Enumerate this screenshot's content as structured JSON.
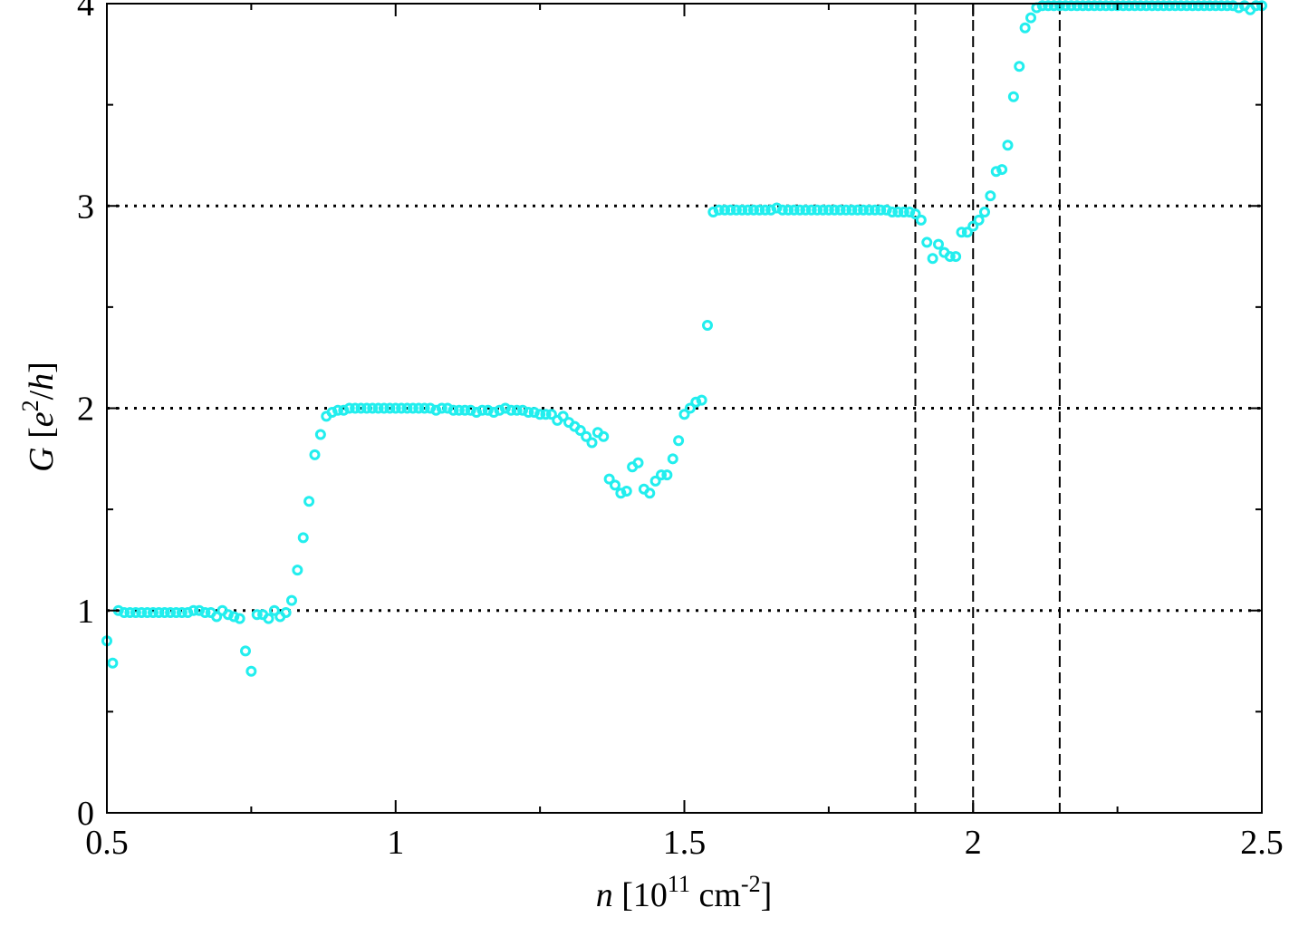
{
  "chart_data": {
    "type": "scatter",
    "xlabel_parts": [
      "n",
      " [10",
      "11",
      " cm",
      "-2",
      "]"
    ],
    "ylabel_parts": [
      "G",
      " [",
      "e",
      "2",
      "/",
      "h",
      "]"
    ],
    "xlim": [
      0.5,
      2.5
    ],
    "ylim": [
      0,
      4
    ],
    "xticks": [
      0.5,
      1,
      1.5,
      2,
      2.5
    ],
    "yticks": [
      0,
      1,
      2,
      3,
      4
    ],
    "xminorticks": [
      0.75,
      1.25,
      1.75,
      2.25
    ],
    "yminorticks": [
      0.5,
      1.5,
      2.5,
      3.5
    ],
    "grid": true,
    "vlines": [
      1.9,
      2.0,
      2.15
    ],
    "color": "#22eeee",
    "x": [
      0.5,
      0.51,
      0.52,
      0.53,
      0.54,
      0.55,
      0.56,
      0.57,
      0.58,
      0.59,
      0.6,
      0.61,
      0.62,
      0.63,
      0.64,
      0.65,
      0.66,
      0.67,
      0.68,
      0.69,
      0.7,
      0.71,
      0.72,
      0.73,
      0.74,
      0.75,
      0.76,
      0.77,
      0.78,
      0.79,
      0.8,
      0.81,
      0.82,
      0.83,
      0.84,
      0.85,
      0.86,
      0.87,
      0.88,
      0.89,
      0.9,
      0.91,
      0.92,
      0.93,
      0.94,
      0.95,
      0.96,
      0.97,
      0.98,
      0.99,
      1.0,
      1.01,
      1.02,
      1.03,
      1.04,
      1.05,
      1.06,
      1.07,
      1.08,
      1.09,
      1.1,
      1.11,
      1.12,
      1.13,
      1.14,
      1.15,
      1.16,
      1.17,
      1.18,
      1.19,
      1.2,
      1.21,
      1.22,
      1.23,
      1.24,
      1.25,
      1.26,
      1.27,
      1.28,
      1.29,
      1.3,
      1.31,
      1.32,
      1.33,
      1.34,
      1.35,
      1.36,
      1.37,
      1.38,
      1.39,
      1.4,
      1.41,
      1.42,
      1.43,
      1.44,
      1.45,
      1.46,
      1.47,
      1.48,
      1.49,
      1.5,
      1.51,
      1.52,
      1.53,
      1.54,
      1.55,
      1.56,
      1.57,
      1.58,
      1.59,
      1.6,
      1.61,
      1.62,
      1.63,
      1.64,
      1.65,
      1.66,
      1.67,
      1.68,
      1.69,
      1.7,
      1.71,
      1.72,
      1.73,
      1.74,
      1.75,
      1.76,
      1.77,
      1.78,
      1.79,
      1.8,
      1.81,
      1.82,
      1.83,
      1.84,
      1.85,
      1.86,
      1.87,
      1.88,
      1.89,
      1.9,
      1.91,
      1.92,
      1.93,
      1.94,
      1.95,
      1.96,
      1.97,
      1.98,
      1.99,
      2.0,
      2.01,
      2.02,
      2.03,
      2.04,
      2.05,
      2.06,
      2.07,
      2.08,
      2.09,
      2.1,
      2.11,
      2.12,
      2.13,
      2.14,
      2.15,
      2.16,
      2.17,
      2.18,
      2.19,
      2.2,
      2.21,
      2.22,
      2.23,
      2.24,
      2.25,
      2.26,
      2.27,
      2.28,
      2.29,
      2.3,
      2.31,
      2.32,
      2.33,
      2.34,
      2.35,
      2.36,
      2.37,
      2.38,
      2.39,
      2.4,
      2.41,
      2.42,
      2.43,
      2.44,
      2.45,
      2.46,
      2.47,
      2.48,
      2.49,
      2.5
    ],
    "values": [
      0.85,
      0.74,
      1.0,
      0.99,
      0.99,
      0.99,
      0.99,
      0.99,
      0.99,
      0.99,
      0.99,
      0.99,
      0.99,
      0.99,
      0.99,
      1.0,
      1.0,
      0.99,
      0.99,
      0.97,
      1.0,
      0.98,
      0.97,
      0.96,
      0.8,
      0.7,
      0.98,
      0.98,
      0.96,
      1.0,
      0.97,
      0.99,
      1.05,
      1.2,
      1.36,
      1.54,
      1.77,
      1.87,
      1.96,
      1.98,
      1.99,
      1.99,
      2.0,
      2.0,
      2.0,
      2.0,
      2.0,
      2.0,
      2.0,
      2.0,
      2.0,
      2.0,
      2.0,
      2.0,
      2.0,
      2.0,
      2.0,
      1.99,
      2.0,
      2.0,
      1.99,
      1.99,
      1.99,
      1.99,
      1.98,
      1.99,
      1.99,
      1.98,
      1.99,
      2.0,
      1.99,
      1.99,
      1.99,
      1.98,
      1.98,
      1.97,
      1.97,
      1.97,
      1.94,
      1.96,
      1.93,
      1.91,
      1.89,
      1.86,
      1.83,
      1.88,
      1.86,
      1.65,
      1.62,
      1.58,
      1.59,
      1.71,
      1.73,
      1.6,
      1.58,
      1.64,
      1.67,
      1.67,
      1.75,
      1.84,
      1.97,
      2.0,
      2.03,
      2.04,
      2.41,
      2.97,
      2.98,
      2.98,
      2.98,
      2.98,
      2.98,
      2.98,
      2.98,
      2.98,
      2.98,
      2.98,
      2.99,
      2.98,
      2.98,
      2.98,
      2.98,
      2.98,
      2.98,
      2.98,
      2.98,
      2.98,
      2.98,
      2.98,
      2.98,
      2.98,
      2.98,
      2.98,
      2.98,
      2.98,
      2.98,
      2.98,
      2.97,
      2.97,
      2.97,
      2.97,
      2.96,
      2.93,
      2.82,
      2.74,
      2.81,
      2.77,
      2.75,
      2.75,
      2.87,
      2.87,
      2.9,
      2.93,
      2.97,
      3.05,
      3.17,
      3.18,
      3.3,
      3.54,
      3.69,
      3.88,
      3.93,
      3.98,
      3.99,
      3.99,
      3.99,
      3.99,
      3.99,
      3.99,
      3.99,
      3.99,
      3.99,
      3.99,
      3.99,
      3.99,
      3.99,
      3.99,
      3.99,
      3.99,
      3.99,
      3.99,
      3.99,
      3.99,
      3.99,
      3.99,
      3.99,
      3.99,
      3.99,
      3.99,
      3.99,
      3.99,
      3.99,
      3.99,
      3.99,
      3.99,
      3.99,
      3.99,
      3.98,
      3.99,
      3.97,
      3.99,
      3.99
    ]
  }
}
